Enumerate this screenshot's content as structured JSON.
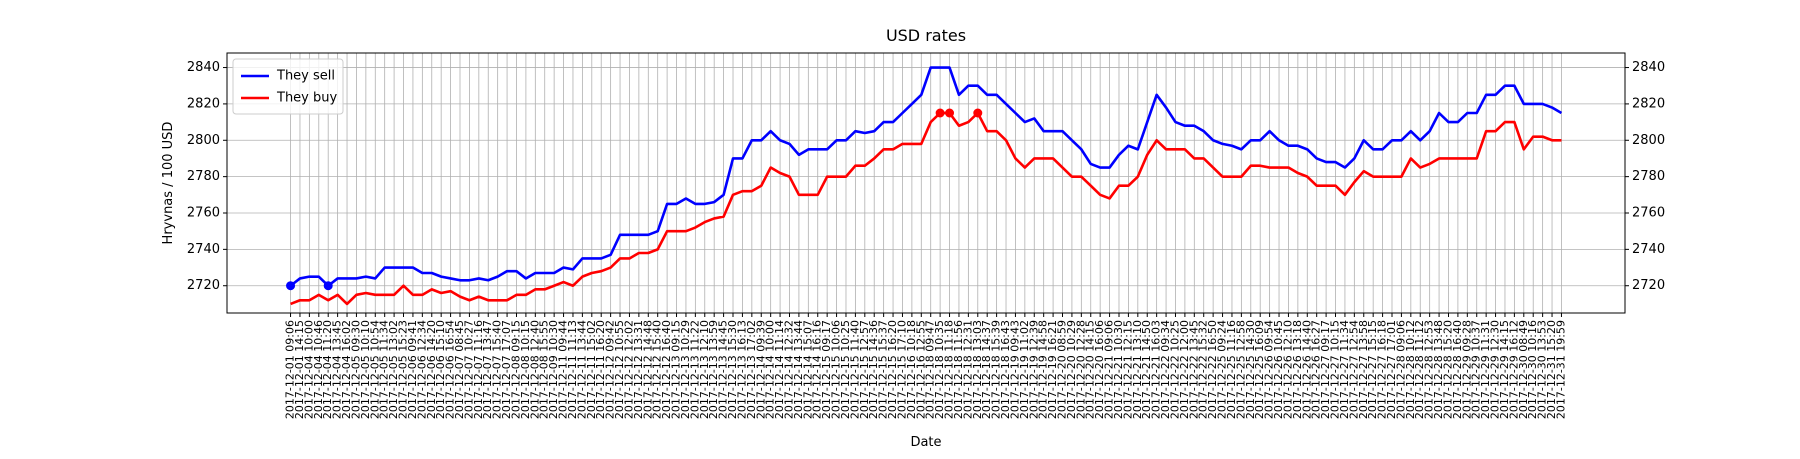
{
  "chart_data": {
    "type": "line",
    "title": "USD rates",
    "x_label": "Date",
    "y_label": "Hryvnas / 100 USD",
    "categories": [
      "2017-12-01 09:06",
      "2017-12-01 14:15",
      "2017-12-04 10:00",
      "2017-12-04 10:46",
      "2017-12-04 11:20",
      "2017-12-04 13:45",
      "2017-12-04 16:02",
      "2017-12-05 09:30",
      "2017-12-05 10:10",
      "2017-12-05 10:54",
      "2017-12-05 11:34",
      "2017-12-05 13:02",
      "2017-12-05 15:23",
      "2017-12-06 09:41",
      "2017-12-06 12:34",
      "2017-12-06 14:20",
      "2017-12-06 15:10",
      "2017-12-06 16:54",
      "2017-12-07 08:45",
      "2017-12-07 10:27",
      "2017-12-07 11:16",
      "2017-12-07 13:47",
      "2017-12-07 15:40",
      "2017-12-07 17:07",
      "2017-12-08 09:15",
      "2017-12-08 10:15",
      "2017-12-08 12:40",
      "2017-12-08 15:55",
      "2017-12-09 10:30",
      "2017-12-11 09:44",
      "2017-12-11 11:13",
      "2017-12-11 13:44",
      "2017-12-11 15:02",
      "2017-12-11 16:20",
      "2017-12-12 09:42",
      "2017-12-12 10:55",
      "2017-12-12 12:02",
      "2017-12-12 13:31",
      "2017-12-12 14:48",
      "2017-12-12 15:40",
      "2017-12-12 16:40",
      "2017-12-13 09:15",
      "2017-12-13 10:29",
      "2017-12-13 11:22",
      "2017-12-13 12:10",
      "2017-12-13 13:59",
      "2017-12-13 14:45",
      "2017-12-13 15:30",
      "2017-12-13 16:13",
      "2017-12-13 17:02",
      "2017-12-14 09:39",
      "2017-12-14 10:00",
      "2017-12-14 11:14",
      "2017-12-14 12:32",
      "2017-12-14 13:44",
      "2017-12-14 15:07",
      "2017-12-14 16:16",
      "2017-12-15 09:17",
      "2017-12-15 10:06",
      "2017-12-15 10:25",
      "2017-12-15 11:40",
      "2017-12-15 12:57",
      "2017-12-15 14:36",
      "2017-12-15 15:37",
      "2017-12-15 16:20",
      "2017-12-15 17:10",
      "2017-12-16 10:18",
      "2017-12-16 12:55",
      "2017-12-18 09:47",
      "2017-12-18 10:35",
      "2017-12-18 11:18",
      "2017-12-18 11:56",
      "2017-12-18 12:31",
      "2017-12-18 13:03",
      "2017-12-18 14:37",
      "2017-12-18 15:39",
      "2017-12-18 16:43",
      "2017-12-19 09:43",
      "2017-12-19 11:02",
      "2017-12-19 12:39",
      "2017-12-19 14:58",
      "2017-12-19 16:21",
      "2017-12-20 08:59",
      "2017-12-20 10:29",
      "2017-12-20 12:28",
      "2017-12-20 14:15",
      "2017-12-20 16:06",
      "2017-12-21 09:06",
      "2017-12-21 10:30",
      "2017-12-21 12:15",
      "2017-12-21 13:10",
      "2017-12-21 14:50",
      "2017-12-21 16:03",
      "2017-12-22 09:34",
      "2017-12-22 10:25",
      "2017-12-22 12:00",
      "2017-12-22 13:45",
      "2017-12-22 15:32",
      "2017-12-22 16:50",
      "2017-12-25 09:24",
      "2017-12-25 11:16",
      "2017-12-25 12:58",
      "2017-12-25 14:30",
      "2017-12-25 16:09",
      "2017-12-26 09:54",
      "2017-12-26 10:45",
      "2017-12-26 12:10",
      "2017-12-26 13:18",
      "2017-12-26 14:40",
      "2017-12-26 16:27",
      "2017-12-27 09:17",
      "2017-12-27 10:15",
      "2017-12-27 11:34",
      "2017-12-27 12:54",
      "2017-12-27 13:58",
      "2017-12-27 15:15",
      "2017-12-27 16:18",
      "2017-12-27 17:01",
      "2017-12-28 09:06",
      "2017-12-28 10:12",
      "2017-12-28 11:12",
      "2017-12-28 12:53",
      "2017-12-28 13:48",
      "2017-12-28 15:20",
      "2017-12-28 16:40",
      "2017-12-29 09:28",
      "2017-12-29 10:37",
      "2017-12-29 11:31",
      "2017-12-29 12:30",
      "2017-12-29 14:15",
      "2017-12-29 16:12",
      "2017-12-30 08:49",
      "2017-12-30 10:16",
      "2017-12-30 13:53",
      "2017-12-31 15:20",
      "2017-12-31 19:59"
    ],
    "series": [
      {
        "name": "They sell",
        "color": "#0000ff",
        "markers": "min",
        "values": [
          2720,
          2724,
          2725,
          2725,
          2720,
          2724,
          2724,
          2724,
          2725,
          2724,
          2730,
          2730,
          2730,
          2730,
          2727,
          2727,
          2725,
          2724,
          2723,
          2723,
          2724,
          2723,
          2725,
          2728,
          2728,
          2724,
          2727,
          2727,
          2727,
          2730,
          2729,
          2735,
          2735,
          2735,
          2737,
          2748,
          2748,
          2748,
          2748,
          2750,
          2765,
          2765,
          2768,
          2765,
          2765,
          2766,
          2770,
          2790,
          2790,
          2800,
          2800,
          2805,
          2800,
          2798,
          2792,
          2795,
          2795,
          2795,
          2800,
          2800,
          2805,
          2804,
          2805,
          2810,
          2810,
          2815,
          2820,
          2825,
          2840,
          2840,
          2840,
          2825,
          2830,
          2830,
          2825,
          2825,
          2820,
          2815,
          2810,
          2812,
          2805,
          2805,
          2805,
          2800,
          2795,
          2787,
          2785,
          2785,
          2792,
          2797,
          2795,
          2810,
          2825,
          2818,
          2810,
          2808,
          2808,
          2805,
          2800,
          2798,
          2797,
          2795,
          2800,
          2800,
          2805,
          2800,
          2797,
          2797,
          2795,
          2790,
          2788,
          2788,
          2785,
          2790,
          2800,
          2795,
          2795,
          2800,
          2800,
          2805,
          2800,
          2805,
          2815,
          2810,
          2810,
          2815,
          2815,
          2825,
          2825,
          2830,
          2830,
          2820,
          2820,
          2820,
          2818,
          2815
        ]
      },
      {
        "name": "They buy",
        "color": "#ff0000",
        "markers": "max",
        "values": [
          2710,
          2712,
          2712,
          2715,
          2712,
          2715,
          2710,
          2715,
          2716,
          2715,
          2715,
          2715,
          2720,
          2715,
          2715,
          2718,
          2716,
          2717,
          2714,
          2712,
          2714,
          2712,
          2712,
          2712,
          2715,
          2715,
          2718,
          2718,
          2720,
          2722,
          2720,
          2725,
          2727,
          2728,
          2730,
          2735,
          2735,
          2738,
          2738,
          2740,
          2750,
          2750,
          2750,
          2752,
          2755,
          2757,
          2758,
          2770,
          2772,
          2772,
          2775,
          2785,
          2782,
          2780,
          2770,
          2770,
          2770,
          2780,
          2780,
          2780,
          2786,
          2786,
          2790,
          2795,
          2795,
          2798,
          2798,
          2798,
          2810,
          2815,
          2815,
          2808,
          2810,
          2815,
          2805,
          2805,
          2800,
          2790,
          2785,
          2790,
          2790,
          2790,
          2785,
          2780,
          2780,
          2775,
          2770,
          2768,
          2775,
          2775,
          2780,
          2792,
          2800,
          2795,
          2795,
          2795,
          2790,
          2790,
          2785,
          2780,
          2780,
          2780,
          2786,
          2786,
          2785,
          2785,
          2785,
          2782,
          2780,
          2775,
          2775,
          2775,
          2770,
          2777,
          2783,
          2780,
          2780,
          2780,
          2780,
          2790,
          2785,
          2787,
          2790,
          2790,
          2790,
          2790,
          2790,
          2805,
          2805,
          2810,
          2810,
          2795,
          2802,
          2802,
          2800,
          2800
        ]
      }
    ],
    "ylim": [
      2705,
      2848
    ],
    "yticks": [
      2720,
      2740,
      2760,
      2780,
      2800,
      2820,
      2840
    ],
    "grid": true,
    "legend": "upper left",
    "right_axis": true
  }
}
